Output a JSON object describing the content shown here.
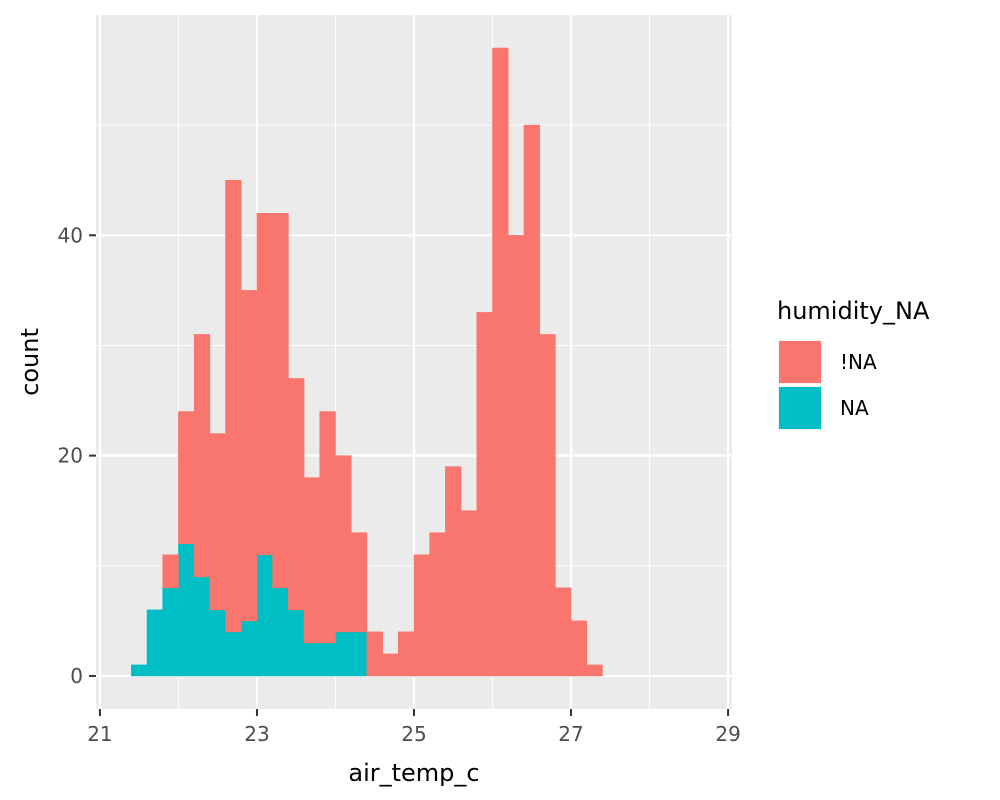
{
  "chart_data": {
    "type": "bar",
    "stacked": true,
    "xlabel": "air_temp_c",
    "ylabel": "count",
    "xlim": [
      20.95,
      29.05
    ],
    "ylim": [
      -3,
      60
    ],
    "x_ticks": [
      21,
      23,
      25,
      27,
      29
    ],
    "y_ticks": [
      0,
      20,
      40
    ],
    "grid": true,
    "legend": {
      "title": "humidity_NA",
      "placement": "right"
    },
    "bins": {
      "starts": [
        21.4,
        21.6,
        21.8,
        22.0,
        22.2,
        22.4,
        22.6,
        22.8,
        23.0,
        23.2,
        23.4,
        23.6,
        23.8,
        24.0,
        24.2,
        24.4,
        24.6,
        24.8,
        25.0,
        25.2,
        25.4,
        25.6,
        25.8,
        26.0,
        26.2,
        26.4,
        26.6,
        26.8,
        27.0,
        27.2,
        27.4,
        27.6,
        27.8,
        28.0,
        28.2,
        28.4,
        28.6
      ],
      "width": 0.2
    },
    "series": [
      {
        "name": "NA",
        "color": "#00BFC4",
        "values": [
          1,
          6,
          8,
          12,
          9,
          6,
          4,
          5,
          11,
          8,
          6,
          3,
          3,
          4,
          4,
          0,
          0,
          0,
          0,
          0,
          0,
          0,
          0,
          0,
          0,
          0,
          0,
          0,
          0,
          0,
          0,
          0,
          0,
          0,
          0,
          0,
          0
        ]
      },
      {
        "name": "!NA",
        "color": "#F8766D",
        "values": [
          0,
          0,
          3,
          12,
          22,
          16,
          41,
          30,
          31,
          34,
          21,
          15,
          21,
          16,
          9,
          4,
          2,
          4,
          11,
          13,
          19,
          15,
          33,
          57,
          40,
          50,
          31,
          8,
          5,
          1,
          0,
          0,
          0,
          0,
          0,
          0,
          0
        ]
      }
    ]
  }
}
